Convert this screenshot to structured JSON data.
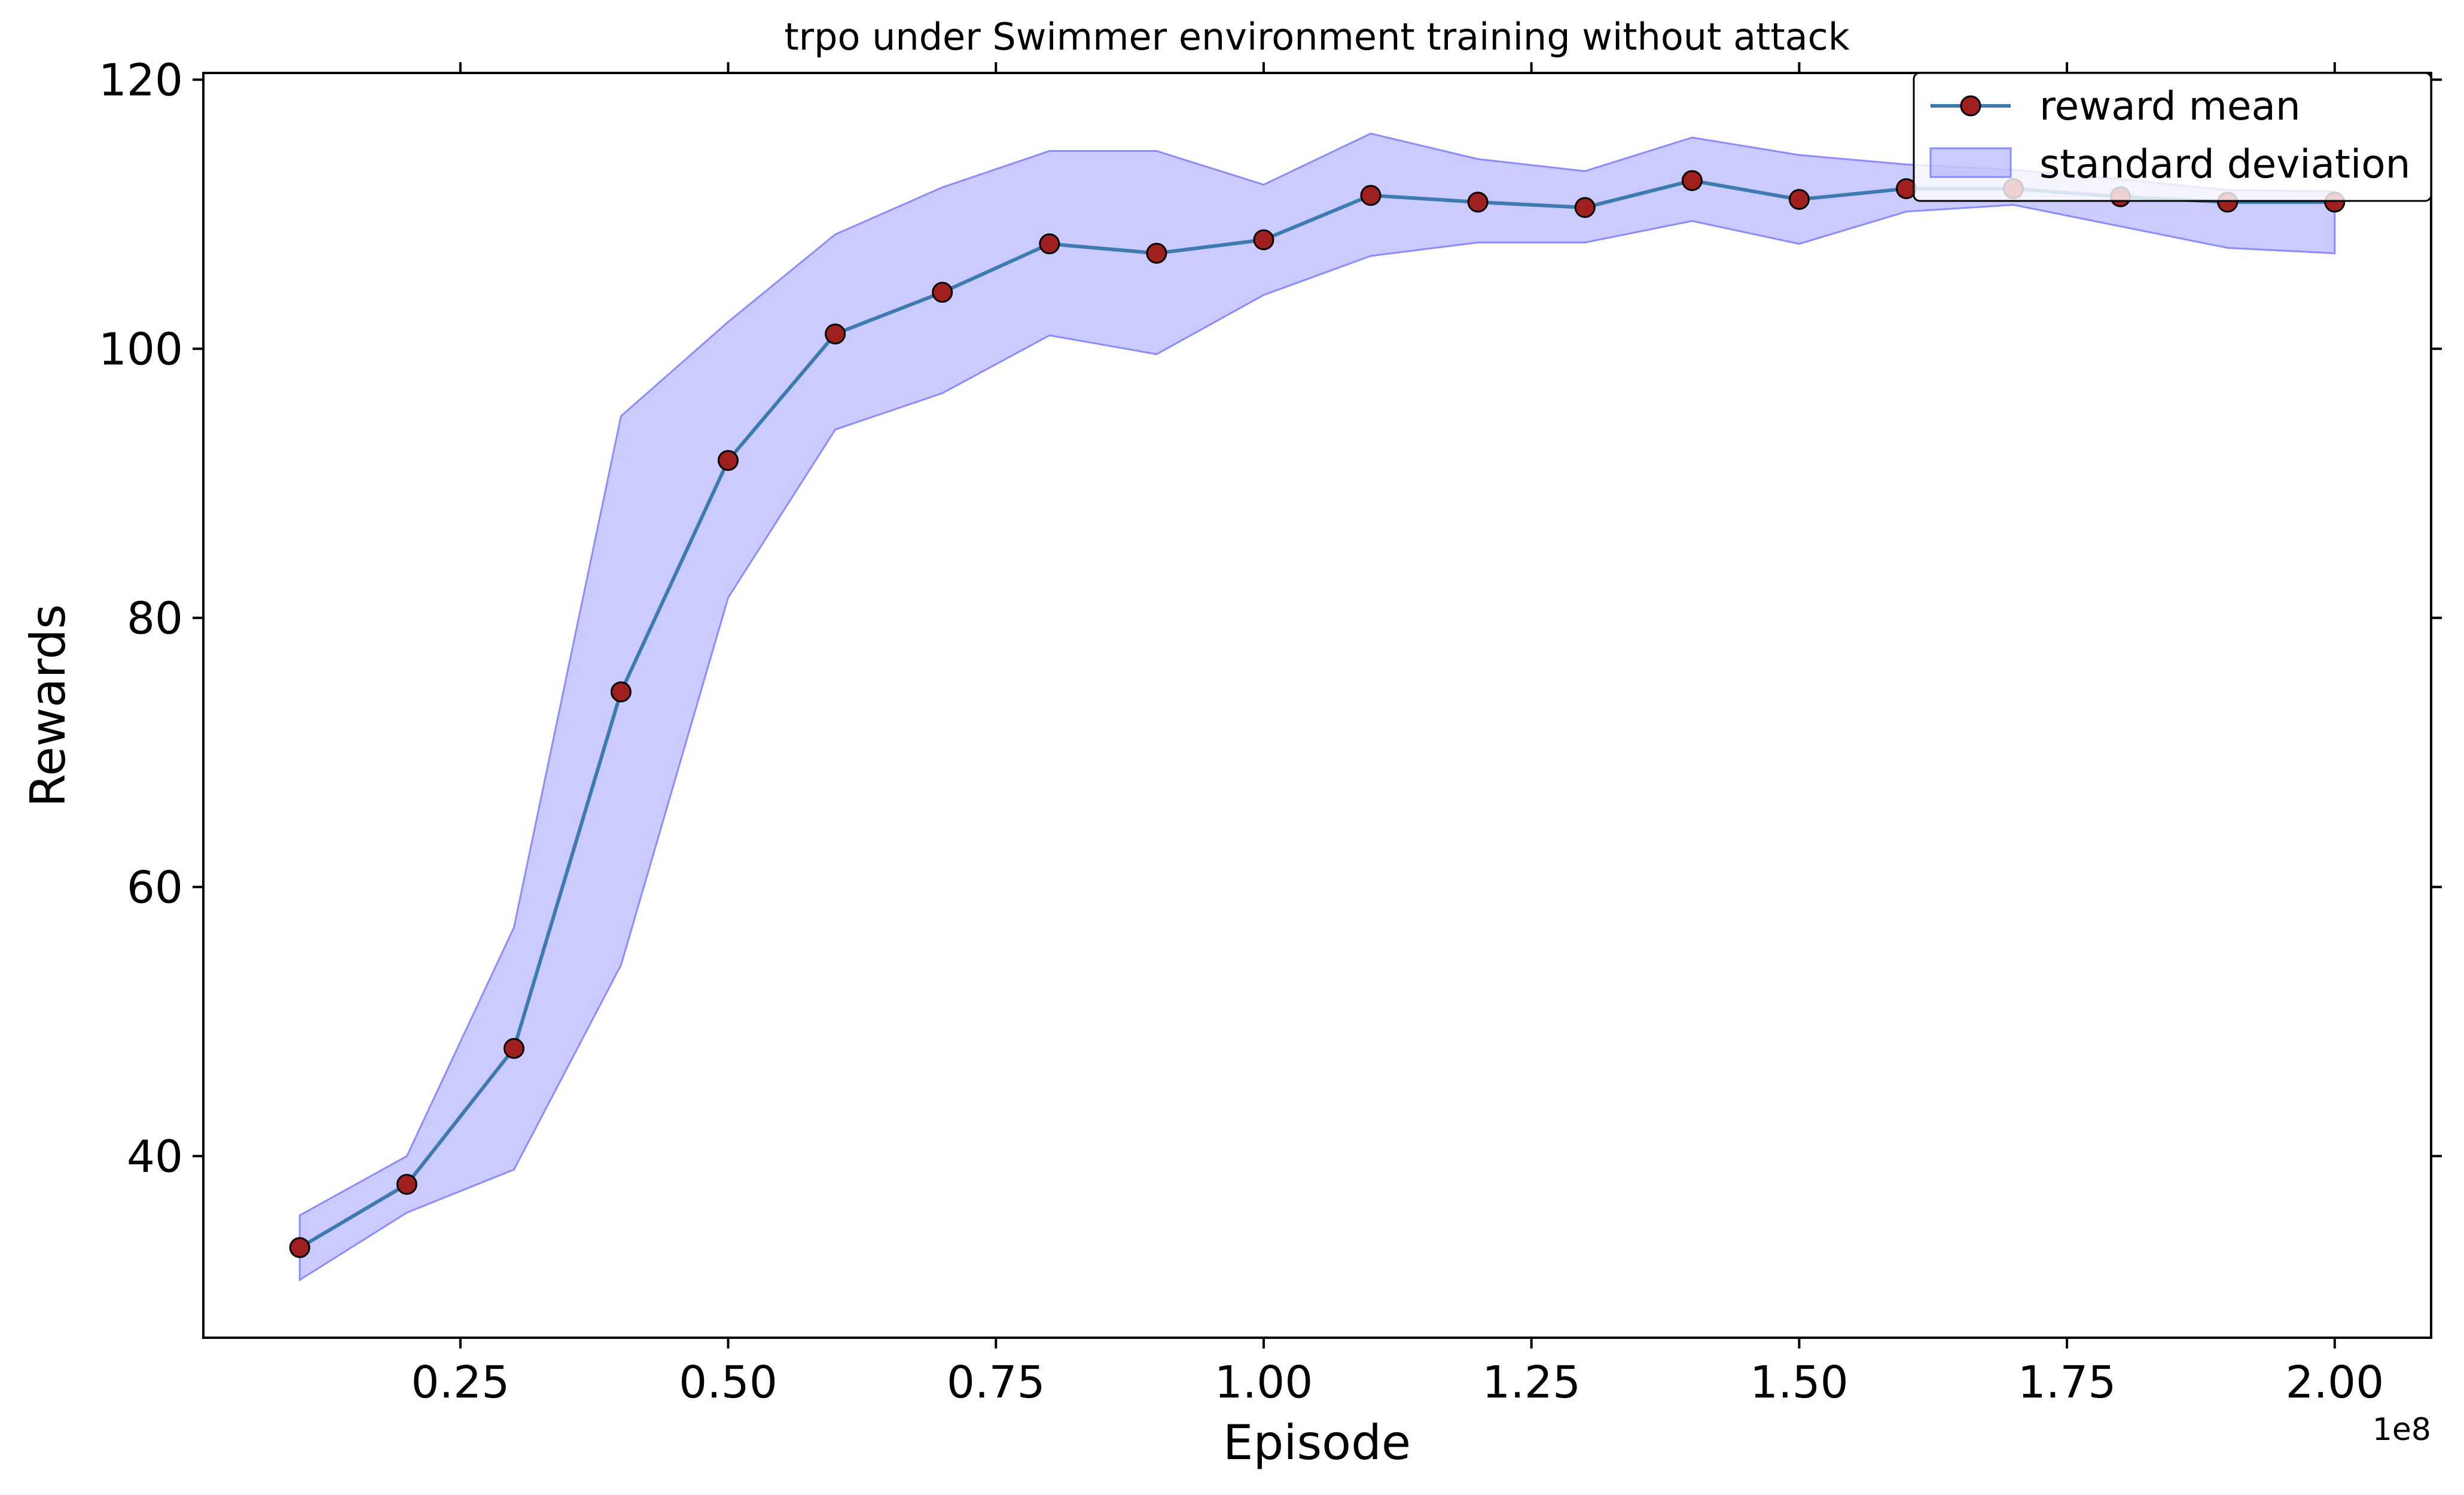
{
  "chart_data": {
    "type": "line",
    "title": "trpo under Swimmer environment training without attack",
    "xlabel": "Episode",
    "ylabel": "Rewards",
    "x_offset_label": "1e8",
    "xlim": [
      0.01,
      2.09
    ],
    "ylim": [
      26.5,
      120.5
    ],
    "xticks": [
      0.25,
      0.5,
      0.75,
      1.0,
      1.25,
      1.5,
      1.75,
      2.0
    ],
    "xtick_labels": [
      "0.25",
      "0.50",
      "0.75",
      "1.00",
      "1.25",
      "1.50",
      "1.75",
      "2.00"
    ],
    "yticks": [
      40,
      60,
      80,
      100,
      120
    ],
    "ytick_labels": [
      "40",
      "60",
      "80",
      "100",
      "120"
    ],
    "x": [
      0.1,
      0.2,
      0.3,
      0.4,
      0.5,
      0.6,
      0.7,
      0.8,
      0.9,
      1.0,
      1.1,
      1.2,
      1.3,
      1.4,
      1.5,
      1.6,
      1.7,
      1.8,
      1.9,
      2.0
    ],
    "series": [
      {
        "name": "reward mean",
        "values": [
          33.2,
          37.9,
          48.0,
          74.5,
          91.7,
          101.1,
          104.2,
          107.8,
          107.1,
          108.1,
          111.4,
          110.9,
          110.5,
          112.5,
          111.1,
          111.9,
          111.9,
          111.3,
          110.9,
          110.9
        ],
        "line_color": "#3d7ab0",
        "marker_color": "#a01f1f"
      }
    ],
    "band": {
      "name": "standard deviation",
      "upper": [
        35.6,
        40.0,
        57.0,
        95.0,
        102.0,
        108.5,
        112.0,
        114.7,
        114.7,
        112.2,
        116.0,
        114.1,
        113.2,
        115.7,
        114.4,
        113.7,
        113.3,
        112.6,
        111.8,
        111.7
      ],
      "lower": [
        30.8,
        35.8,
        39.0,
        54.2,
        81.5,
        94.0,
        96.7,
        101.0,
        99.6,
        104.0,
        106.9,
        107.9,
        107.9,
        109.5,
        107.8,
        110.2,
        110.7,
        109.1,
        107.5,
        107.1
      ],
      "color": "#8c8cff"
    },
    "grid": false,
    "legend_position": "top-right"
  }
}
